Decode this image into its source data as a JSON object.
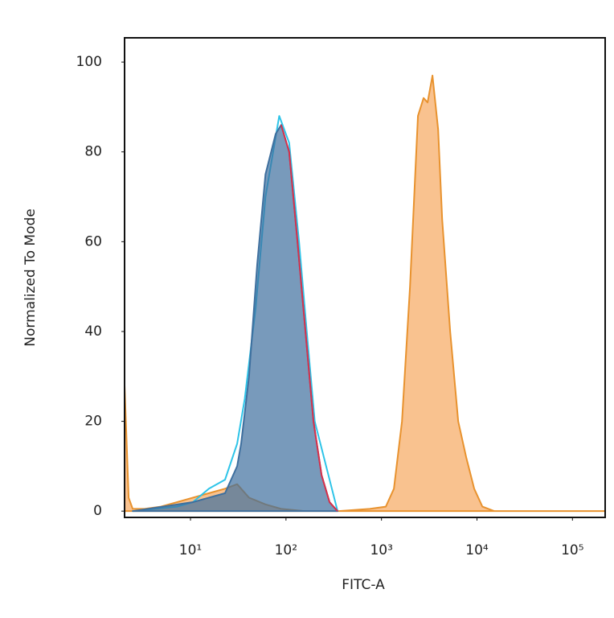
{
  "chart_data": {
    "type": "area",
    "xlabel": "FITC-A",
    "ylabel": "Normalized To Mode",
    "xscale": "log",
    "xlim": [
      2.04,
      220000
    ],
    "ylim": [
      -1.4,
      105.4
    ],
    "xticks": [
      {
        "value": 10,
        "label": "10¹"
      },
      {
        "value": 100,
        "label": "10²"
      },
      {
        "value": 1000,
        "label": "10³"
      },
      {
        "value": 10000,
        "label": "10⁴"
      },
      {
        "value": 100000,
        "label": "10⁵"
      }
    ],
    "yticks": [
      0,
      20,
      40,
      60,
      80,
      100
    ],
    "series": [
      {
        "color": "#e8922e",
        "fill": "rgba(247,170,100,0.72)",
        "x": [
          2.04,
          2.25,
          2.48,
          3.3,
          4.9,
          7.2,
          10.6,
          15.6,
          23,
          30.8,
          41,
          61,
          89,
          160,
          347,
          753,
          1110,
          1350,
          1640,
          1990,
          2410,
          2760,
          3040,
          3420,
          3920,
          4320,
          5240,
          6360,
          7710,
          9350,
          11400,
          15200,
          220000
        ],
        "values": [
          28,
          3,
          0.5,
          0.5,
          1,
          2,
          3,
          4,
          5,
          6,
          3,
          1.5,
          0.5,
          0,
          0,
          0.5,
          1,
          5,
          20,
          50,
          88,
          92,
          91,
          97,
          85,
          65,
          40,
          20,
          12,
          5,
          1,
          0,
          0
        ]
      },
      {
        "color": "#2ec4e8",
        "fill": "none",
        "x": [
          2.48,
          7.2,
          10.6,
          15.6,
          23,
          30.8,
          37,
          48,
          61,
          85,
          108,
          137,
          165,
          200,
          347
        ],
        "values": [
          0,
          1,
          2,
          5,
          7,
          15,
          25,
          45,
          70,
          88,
          82,
          60,
          40,
          20,
          0
        ]
      },
      {
        "color": "#3e6f9e",
        "fill": "rgba(62,111,158,0.7)",
        "x": [
          2.48,
          10.6,
          15.6,
          23,
          30.8,
          33.9,
          41,
          50,
          61,
          78,
          89,
          108,
          132,
          160,
          194,
          236,
          286,
          347
        ],
        "values": [
          0,
          2,
          3,
          4,
          10,
          15,
          30,
          55,
          75,
          84,
          86,
          80,
          60,
          40,
          20,
          8,
          2,
          0
        ]
      },
      {
        "color": "#d9304a",
        "fill": "none",
        "x": [
          89,
          108,
          132,
          160,
          194,
          236,
          286,
          347
        ],
        "values": [
          86,
          80,
          60,
          40,
          20,
          8,
          2,
          0
        ]
      }
    ]
  }
}
